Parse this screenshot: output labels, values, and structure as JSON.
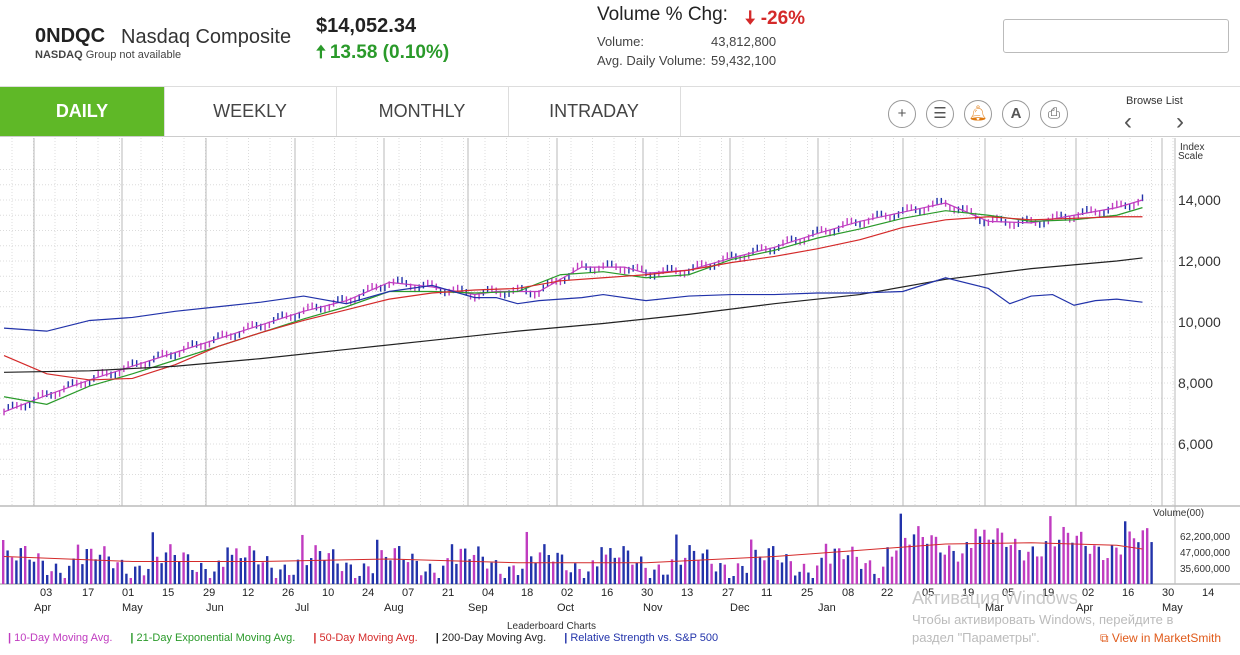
{
  "header": {
    "symbol": "0NDQC",
    "name": "Nasdaq Composite",
    "exchange": "NASDAQ",
    "group_text": "Group not available",
    "price": "$14,052.34",
    "change_arrow": "🠅",
    "change": "13.58 (0.10%)",
    "volume_chg_label": "Volume % Chg:",
    "volume_chg_arrow": "🠇",
    "volume_chg_value": "-26%",
    "volume_label": "Volume:",
    "volume_value": "43,812,800",
    "avg_volume_label": "Avg. Daily Volume:",
    "avg_volume_value": "59,432,100",
    "search_placeholder": ""
  },
  "tabs": [
    "DAILY",
    "WEEKLY",
    "MONTHLY",
    "INTRADAY"
  ],
  "toolbar": {
    "add_icon": "plus-icon",
    "list_icon": "list-icon",
    "alert_icon": "bell-icon",
    "annotate_label": "A",
    "print_icon": "printer-icon",
    "browse_list_label": "Browse List",
    "prev": "‹",
    "next": "›"
  },
  "chart_labels": {
    "index_scale_1": "Index",
    "index_scale_2": "Scale",
    "volume_label": "Volume(00)",
    "leaderboard": "Leaderboard Charts"
  },
  "legend": [
    {
      "label": "10-Day Moving Avg.",
      "color": "#c03cc0"
    },
    {
      "label": "21-Day Exponential Moving Avg.",
      "color": "#2a9a2a"
    },
    {
      "label": "50-Day Moving Avg.",
      "color": "#d42a2a"
    },
    {
      "label": "200-Day Moving Avg.",
      "color": "#222222"
    },
    {
      "label": "Relative Strength vs. S&P 500",
      "color": "#2233aa"
    }
  ],
  "view_link": "View in MarketSmith",
  "watermark": {
    "line1": "Активация Windows",
    "line2": "Чтобы активировать Windows, перейдите в",
    "line3": "раздел \"Параметры\"."
  },
  "chart_data": {
    "type": "line",
    "price_axis": {
      "ticks": [
        "14,000",
        "12,000",
        "10,000",
        "8,000",
        "6,000"
      ],
      "values": [
        14000,
        12000,
        10000,
        8000,
        6000
      ]
    },
    "volume_axis": {
      "ticks": [
        "62,200,000",
        "47,000,000",
        "35,600,000"
      ],
      "values": [
        622000,
        470000,
        356000
      ]
    },
    "x_ticks": [
      "03",
      "17",
      "01",
      "15",
      "29",
      "12",
      "26",
      "10",
      "24",
      "07",
      "21",
      "04",
      "18",
      "02",
      "16",
      "30",
      "13",
      "27",
      "11",
      "25",
      "08",
      "22",
      "05",
      "19",
      "05",
      "19",
      "02",
      "16",
      "30",
      "14"
    ],
    "x_months": [
      "Apr",
      "May",
      "Jun",
      "Jul",
      "Aug",
      "Sep",
      "Oct",
      "Nov",
      "Dec",
      "Jan",
      "Mar",
      "Apr",
      "May"
    ],
    "series": [
      {
        "name": "10-Day Moving Avg.",
        "color": "#c03cc0",
        "values": [
          [
            0,
            7050
          ],
          [
            10,
            7600
          ],
          [
            20,
            8100
          ],
          [
            30,
            8550
          ],
          [
            40,
            9000
          ],
          [
            50,
            9450
          ],
          [
            60,
            9900
          ],
          [
            70,
            10350
          ],
          [
            80,
            10700
          ],
          [
            90,
            11300
          ],
          [
            100,
            11150
          ],
          [
            110,
            10900
          ],
          [
            115,
            11000
          ],
          [
            125,
            11000
          ],
          [
            135,
            11800
          ],
          [
            145,
            11800
          ],
          [
            150,
            11600
          ],
          [
            160,
            11700
          ],
          [
            170,
            12100
          ],
          [
            180,
            12450
          ],
          [
            190,
            12900
          ],
          [
            200,
            13300
          ],
          [
            210,
            13600
          ],
          [
            220,
            13900
          ],
          [
            230,
            13300
          ],
          [
            240,
            13250
          ],
          [
            250,
            13500
          ],
          [
            260,
            13750
          ],
          [
            266,
            14000
          ]
        ]
      },
      {
        "name": "21-Day Exponential Moving Avg.",
        "color": "#2a9a2a",
        "values": [
          [
            0,
            7550
          ],
          [
            10,
            7300
          ],
          [
            20,
            7900
          ],
          [
            30,
            8300
          ],
          [
            40,
            8750
          ],
          [
            50,
            9200
          ],
          [
            60,
            9650
          ],
          [
            70,
            10100
          ],
          [
            80,
            10500
          ],
          [
            90,
            11000
          ],
          [
            100,
            11000
          ],
          [
            110,
            10950
          ],
          [
            120,
            11000
          ],
          [
            130,
            11550
          ],
          [
            140,
            11650
          ],
          [
            150,
            11450
          ],
          [
            160,
            11550
          ],
          [
            170,
            12050
          ],
          [
            180,
            12350
          ],
          [
            190,
            12750
          ],
          [
            200,
            13050
          ],
          [
            210,
            13400
          ],
          [
            220,
            13650
          ],
          [
            230,
            13500
          ],
          [
            240,
            13300
          ],
          [
            250,
            13350
          ],
          [
            260,
            13500
          ],
          [
            266,
            13750
          ]
        ]
      },
      {
        "name": "50-Day Moving Avg.",
        "color": "#d42a2a",
        "values": [
          [
            0,
            8900
          ],
          [
            10,
            8300
          ],
          [
            20,
            8100
          ],
          [
            30,
            8150
          ],
          [
            40,
            8600
          ],
          [
            50,
            9200
          ],
          [
            60,
            9650
          ],
          [
            70,
            10050
          ],
          [
            80,
            10400
          ],
          [
            90,
            10750
          ],
          [
            100,
            10950
          ],
          [
            110,
            11050
          ],
          [
            120,
            11100
          ],
          [
            130,
            11350
          ],
          [
            140,
            11450
          ],
          [
            150,
            11550
          ],
          [
            160,
            11700
          ],
          [
            170,
            11950
          ],
          [
            180,
            12150
          ],
          [
            190,
            12400
          ],
          [
            200,
            12700
          ],
          [
            210,
            13100
          ],
          [
            220,
            13350
          ],
          [
            230,
            13450
          ],
          [
            240,
            13350
          ],
          [
            250,
            13400
          ],
          [
            260,
            13450
          ],
          [
            266,
            13450
          ]
        ]
      },
      {
        "name": "200-Day Moving Avg.",
        "color": "#222222",
        "values": [
          [
            0,
            8350
          ],
          [
            20,
            8400
          ],
          [
            40,
            8550
          ],
          [
            60,
            8800
          ],
          [
            80,
            9100
          ],
          [
            100,
            9400
          ],
          [
            120,
            9700
          ],
          [
            140,
            9950
          ],
          [
            160,
            10250
          ],
          [
            180,
            10600
          ],
          [
            200,
            10900
          ],
          [
            220,
            11400
          ],
          [
            240,
            11750
          ],
          [
            260,
            12000
          ],
          [
            266,
            12100
          ]
        ]
      },
      {
        "name": "Relative Strength vs. S&P 500",
        "color": "#2233aa",
        "values": [
          [
            0,
            9800
          ],
          [
            10,
            9700
          ],
          [
            20,
            10050
          ],
          [
            30,
            10150
          ],
          [
            40,
            10350
          ],
          [
            50,
            10500
          ],
          [
            60,
            10650
          ],
          [
            70,
            10850
          ],
          [
            80,
            10600
          ],
          [
            90,
            11000
          ],
          [
            100,
            11200
          ],
          [
            110,
            10800
          ],
          [
            115,
            10800
          ],
          [
            120,
            10600
          ],
          [
            125,
            10700
          ],
          [
            135,
            10800
          ],
          [
            140,
            10900
          ],
          [
            150,
            10700
          ],
          [
            160,
            10850
          ],
          [
            170,
            10900
          ],
          [
            180,
            10900
          ],
          [
            190,
            10950
          ],
          [
            200,
            10950
          ],
          [
            210,
            11000
          ],
          [
            220,
            11450
          ],
          [
            230,
            11100
          ],
          [
            235,
            10600
          ],
          [
            240,
            10850
          ],
          [
            245,
            10900
          ],
          [
            250,
            10550
          ],
          [
            255,
            10700
          ],
          [
            260,
            10750
          ],
          [
            266,
            10650
          ]
        ]
      }
    ],
    "volume_bars_note": "daily volume bars",
    "volume_ma": [
      [
        0,
        420000
      ],
      [
        30,
        380000
      ],
      [
        60,
        380000
      ],
      [
        90,
        400000
      ],
      [
        120,
        370000
      ],
      [
        150,
        370000
      ],
      [
        180,
        420000
      ],
      [
        200,
        470000
      ],
      [
        220,
        520000
      ],
      [
        240,
        530000
      ],
      [
        260,
        510000
      ],
      [
        266,
        480000
      ]
    ]
  }
}
